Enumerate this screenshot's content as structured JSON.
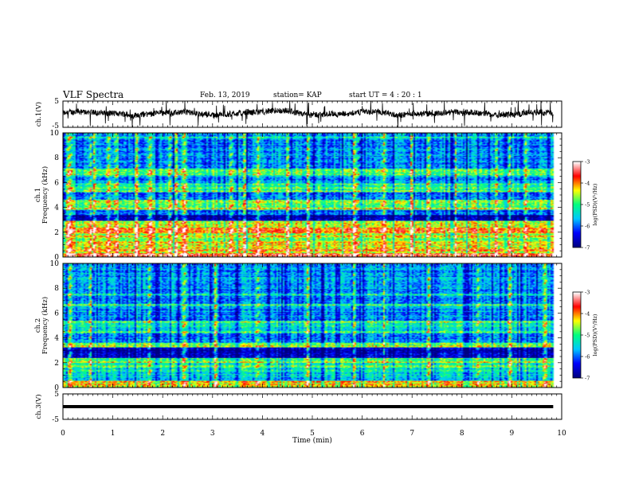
{
  "header": {
    "title": "VLF Spectra",
    "date": "Feb. 13, 2019",
    "station": "station= KAP",
    "start": "start  UT =  4 : 20 : 1"
  },
  "colors": {
    "colormap": [
      "#000080",
      "#0000ff",
      "#00c8ff",
      "#00ff80",
      "#ffff00",
      "#ff0000",
      "#ffffff"
    ],
    "trace": "#000000"
  },
  "chart_data": [
    {
      "type": "line",
      "id": "ch1-voltage",
      "ylabel": "ch.1(V)",
      "ylim": [
        -5,
        5
      ],
      "yticks": [
        "5",
        "-5"
      ],
      "x_range_min": [
        0,
        9.83
      ],
      "series": [
        {
          "level": 0.3,
          "noise_amplitude": 1.6
        }
      ]
    },
    {
      "type": "heatmap",
      "id": "ch1-spectrogram",
      "ylabel_line1": "ch.1",
      "ylabel_line2": "Frequency  (kHz)",
      "xlim": [
        0,
        10
      ],
      "ylim": [
        0,
        10
      ],
      "yticks": [
        "0",
        "2",
        "4",
        "6",
        "8",
        "10"
      ],
      "colorbar": {
        "label": "log(PSD)(V²/Hz)",
        "range": [
          -7,
          -3
        ],
        "ticks": [
          "-3",
          "-4",
          "-5",
          "-6",
          "-7"
        ]
      },
      "bands_khz": [
        {
          "lo": 0.0,
          "hi": 0.3,
          "log_psd": -3.4
        },
        {
          "lo": 0.3,
          "hi": 1.2,
          "log_psd": -4.3
        },
        {
          "lo": 1.2,
          "hi": 1.9,
          "log_psd": -4.6
        },
        {
          "lo": 1.9,
          "hi": 2.4,
          "log_psd": -3.9
        },
        {
          "lo": 2.4,
          "hi": 2.9,
          "log_psd": -4.5
        },
        {
          "lo": 2.9,
          "hi": 3.4,
          "log_psd": -6.7
        },
        {
          "lo": 3.4,
          "hi": 3.8,
          "log_psd": -5.9
        },
        {
          "lo": 3.8,
          "hi": 4.6,
          "log_psd": -4.8
        },
        {
          "lo": 4.6,
          "hi": 5.2,
          "log_psd": -6.0
        },
        {
          "lo": 5.2,
          "hi": 5.9,
          "log_psd": -5.0
        },
        {
          "lo": 5.9,
          "hi": 6.6,
          "log_psd": -5.7
        },
        {
          "lo": 6.6,
          "hi": 7.2,
          "log_psd": -5.0
        },
        {
          "lo": 7.2,
          "hi": 10.0,
          "log_psd": -5.8
        }
      ],
      "lines_khz": [
        {
          "f": 0.55,
          "log_psd": -3.8
        },
        {
          "f": 1.65,
          "log_psd": -4.2
        },
        {
          "f": 2.1,
          "log_psd": -3.6
        },
        {
          "f": 2.3,
          "log_psd": -4.0
        },
        {
          "f": 3.85,
          "log_psd": -4.2
        },
        {
          "f": 4.55,
          "log_psd": -4.5
        },
        {
          "f": 5.3,
          "log_psd": -4.4
        },
        {
          "f": 5.55,
          "log_psd": -4.6
        },
        {
          "f": 6.65,
          "log_psd": -4.4
        },
        {
          "f": 7.0,
          "log_psd": -4.5
        },
        {
          "f": 9.65,
          "log_psd": -4.9
        }
      ],
      "impulses_min": [
        0.08,
        0.13,
        0.55,
        0.62,
        0.9,
        1.05,
        1.48,
        1.72,
        2.15,
        2.28,
        2.42,
        3.35,
        3.62,
        3.9,
        4.52,
        4.88,
        5.8,
        5.92,
        6.42,
        6.98,
        7.32,
        7.85,
        8.7,
        8.95,
        9.25
      ],
      "data_end_min": 9.83
    },
    {
      "type": "heatmap",
      "id": "ch2-spectrogram",
      "ylabel_line1": "ch.2",
      "ylabel_line2": "Frequency  (kHz)",
      "xlim": [
        0,
        10
      ],
      "ylim": [
        0,
        10
      ],
      "yticks": [
        "0",
        "2",
        "4",
        "6",
        "8",
        "10"
      ],
      "colorbar": {
        "label": "log(PSD)(V²/Hz)",
        "range": [
          -7,
          -3
        ],
        "ticks": [
          "-3",
          "-4",
          "-5",
          "-6",
          "-7"
        ]
      },
      "bands_khz": [
        {
          "lo": 0.0,
          "hi": 0.5,
          "log_psd": -4.2
        },
        {
          "lo": 0.5,
          "hi": 1.0,
          "log_psd": -5.5
        },
        {
          "lo": 1.0,
          "hi": 1.9,
          "log_psd": -5.3
        },
        {
          "lo": 1.9,
          "hi": 2.4,
          "log_psd": -4.9
        },
        {
          "lo": 2.4,
          "hi": 3.2,
          "log_psd": -6.7
        },
        {
          "lo": 3.2,
          "hi": 3.6,
          "log_psd": -5.0
        },
        {
          "lo": 3.6,
          "hi": 4.5,
          "log_psd": -5.9
        },
        {
          "lo": 4.5,
          "hi": 5.3,
          "log_psd": -5.3
        },
        {
          "lo": 5.3,
          "hi": 10.0,
          "log_psd": -5.8
        }
      ],
      "lines_khz": [
        {
          "f": 1.7,
          "log_psd": -4.4
        },
        {
          "f": 2.05,
          "log_psd": -4.3
        },
        {
          "f": 3.3,
          "log_psd": -4.3
        },
        {
          "f": 3.5,
          "log_psd": -4.5
        },
        {
          "f": 4.45,
          "log_psd": -4.6
        },
        {
          "f": 5.3,
          "log_psd": -4.6
        },
        {
          "f": 6.65,
          "log_psd": -4.7
        },
        {
          "f": 7.5,
          "log_psd": -4.9
        }
      ],
      "impulses_min": [
        0.13,
        0.55,
        1.72,
        2.42,
        3.05,
        3.9,
        4.88,
        5.8,
        6.42,
        7.32,
        8.3,
        8.95,
        9.65
      ],
      "data_end_min": 9.83
    },
    {
      "type": "line",
      "id": "ch3-voltage",
      "ylabel": "ch.3(V)",
      "ylim": [
        -5,
        5
      ],
      "yticks": [
        "5",
        "-5"
      ],
      "xlabel": "Time  (min)",
      "xlim": [
        0,
        10
      ],
      "xticks": [
        "0",
        "1",
        "2",
        "3",
        "4",
        "5",
        "6",
        "7",
        "8",
        "9",
        "10"
      ],
      "x_range_min": [
        0,
        9.83
      ],
      "series": [
        {
          "level": 0.0,
          "noise_amplitude": 0
        }
      ]
    }
  ]
}
